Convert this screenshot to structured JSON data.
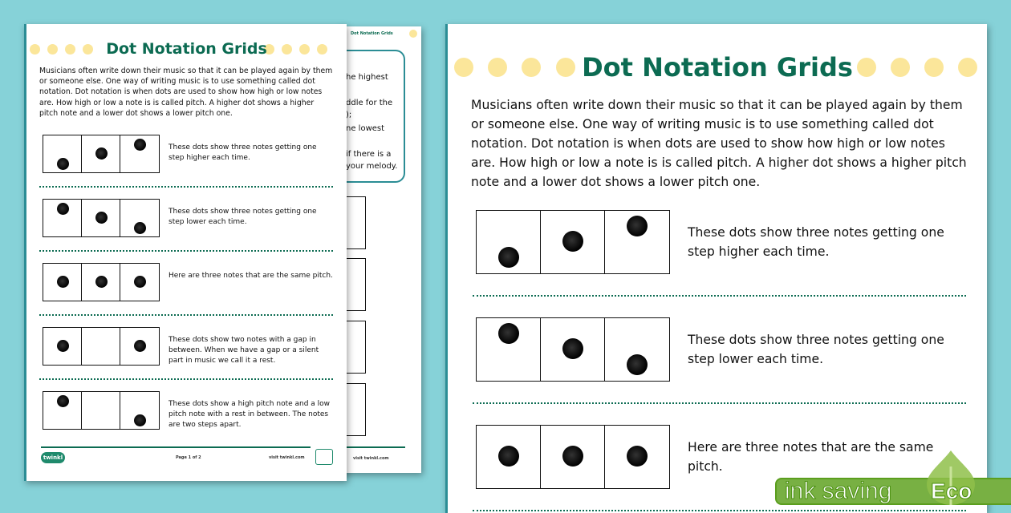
{
  "worksheet": {
    "title": "Dot Notation Grids",
    "intro": "Musicians often write down their music so that it can be played again by them or someone else. One way of writing music is to use something called dot notation. Dot notation is when dots are used to show how high or low notes are. How high or low a note is is called pitch. A higher dot shows a higher pitch note and a lower dot shows a lower pitch one.",
    "examples": [
      {
        "notes": [
          "low",
          "mid",
          "high"
        ],
        "text": "These dots show three notes getting one step higher each time."
      },
      {
        "notes": [
          "high",
          "mid",
          "low"
        ],
        "text": "These dots show three notes getting one step lower each time."
      },
      {
        "notes": [
          "mid",
          "mid",
          "mid"
        ],
        "text": "Here are three notes that are the same pitch."
      },
      {
        "notes": [
          "mid",
          null,
          "mid"
        ],
        "text": "These dots show two notes with a gap in between. When we have a gap or a silent part in music we call it a rest."
      },
      {
        "notes": [
          "high",
          null,
          "low"
        ],
        "text": "These dots show a high pitch note and a low pitch note with a rest in between. The notes are two steps apart."
      }
    ],
    "footer": {
      "logo": "twinkl",
      "page": "Page 1 of 2",
      "site": "visit twinkl.com"
    }
  },
  "back_page": {
    "title": "Dot Notation Grids",
    "fragments": [
      "he highest",
      "ddle for the",
      ");",
      "ne lowest",
      "if there is a",
      "your melody."
    ],
    "site": "visit twinkl.com"
  },
  "badge": {
    "text": "ink saving",
    "label": "Eco",
    "color": "#78b043"
  },
  "colors": {
    "background": "#86d2d8",
    "title": "#0c6b52",
    "title_dots": "#fbe69a"
  }
}
